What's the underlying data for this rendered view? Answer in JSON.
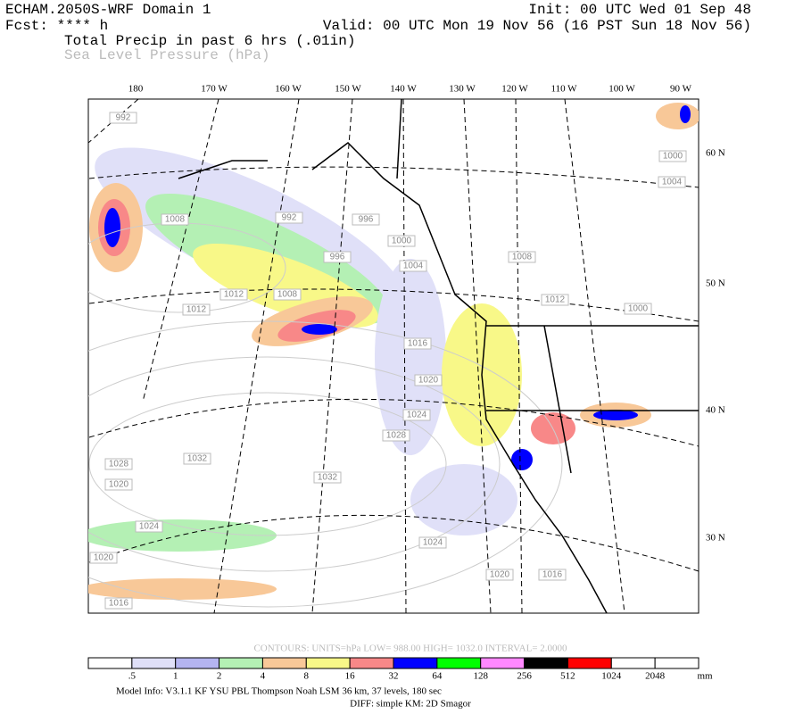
{
  "header": {
    "title": "ECHAM.2050S-WRF Domain 1",
    "init": "Init: 00 UTC Wed 01 Sep 48",
    "fcst": "Fcst: **** h",
    "valid": "Valid: 00 UTC Mon 19 Nov 56 (16 PST Sun 18 Nov 56)",
    "field1": "Total Precip in past 6 hrs (.01in)",
    "field2": "Sea Level Pressure (hPa)"
  },
  "map": {
    "lon_labels": [
      "180",
      "170 W",
      "160 W",
      "150 W",
      "140 W",
      "130 W",
      "120 W",
      "110 W",
      "100 W",
      "90 W"
    ],
    "lat_labels": [
      "60 N",
      "50 N",
      "40 N",
      "30 N"
    ],
    "contour_labels": [
      "992",
      "1008",
      "992",
      "996",
      "1000",
      "996",
      "1004",
      "1008",
      "1012",
      "1000",
      "1004",
      "1012",
      "1008",
      "1012",
      "1016",
      "1020",
      "1024",
      "1028",
      "1032",
      "1032",
      "1028",
      "1020",
      "1024",
      "1024",
      "1020",
      "1020",
      "1016",
      "1016",
      "1000"
    ]
  },
  "contour_info": "CONTOURS:  UNITS=hPa  LOW=  988.00      HIGH=  1032.0      INTERVAL=   2.0000",
  "colorbar": {
    "labels": [
      ".5",
      "1",
      "2",
      "4",
      "8",
      "16",
      "32",
      "64",
      "128",
      "256",
      "512",
      "1024",
      "2048"
    ],
    "unit": "mm",
    "colors": [
      "#ffffff",
      "#e0e0f8",
      "#b4b4f0",
      "#b4f0b4",
      "#f8c898",
      "#f8f888",
      "#f88888",
      "#0000ff",
      "#00ff00",
      "#ff88ff",
      "#000000",
      "#ff0000",
      "#ffffff",
      "#ffffff"
    ]
  },
  "footer": {
    "model_info": "Model Info: V3.1.1    KF        YSU PBL    Thompson     Noah LSM    36 km,    37 levels,   180 sec",
    "diff": "DIFF: simple KM: 2D Smagor"
  }
}
